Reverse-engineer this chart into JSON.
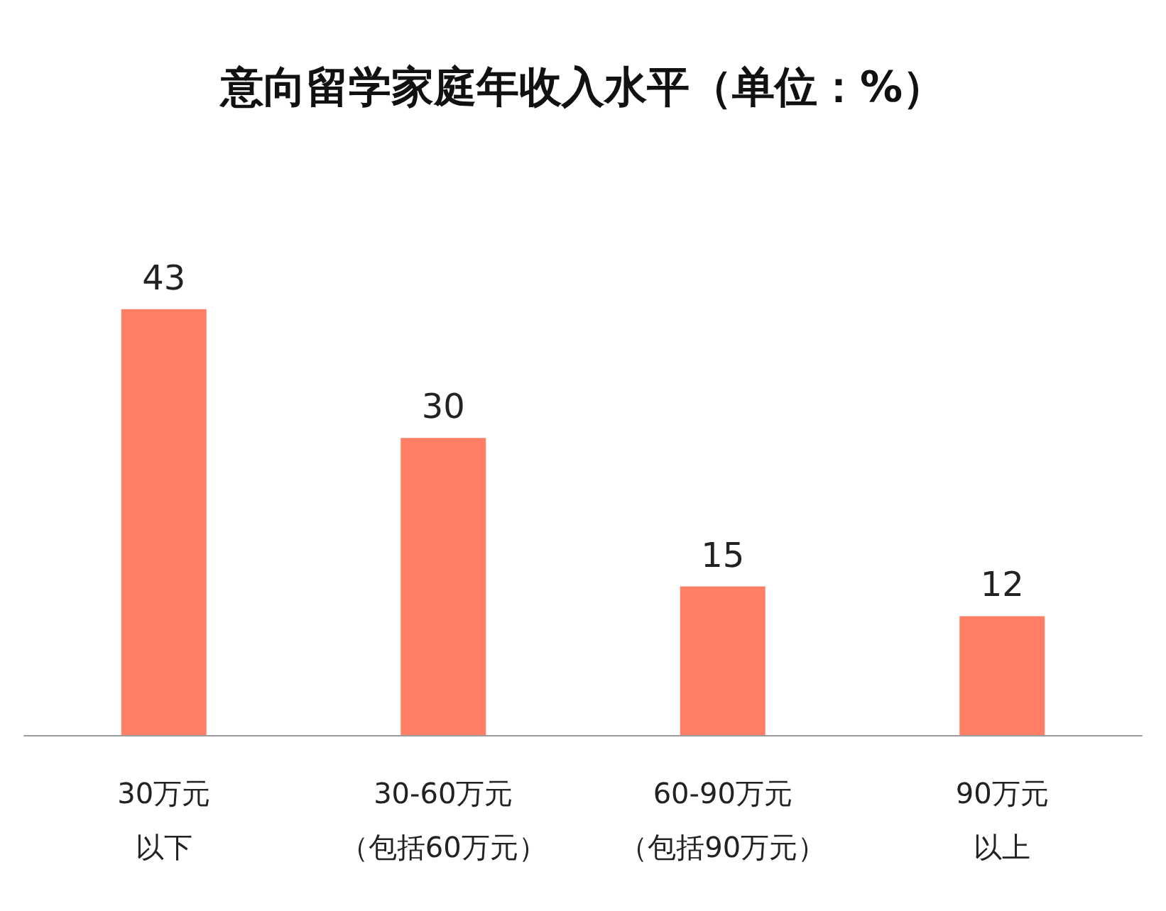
{
  "chart_data": {
    "type": "bar",
    "title": "意向留学家庭年收入水平（单位：%）",
    "categories": [
      "30万元以下",
      "30-60万元（包括60万元）",
      "60-90万元（包括90万元）",
      "90万元以上"
    ],
    "values": [
      43,
      30,
      15,
      12
    ],
    "color": "#ff7f66",
    "data_labels": true,
    "grid": false,
    "tick_labels": "x"
  }
}
